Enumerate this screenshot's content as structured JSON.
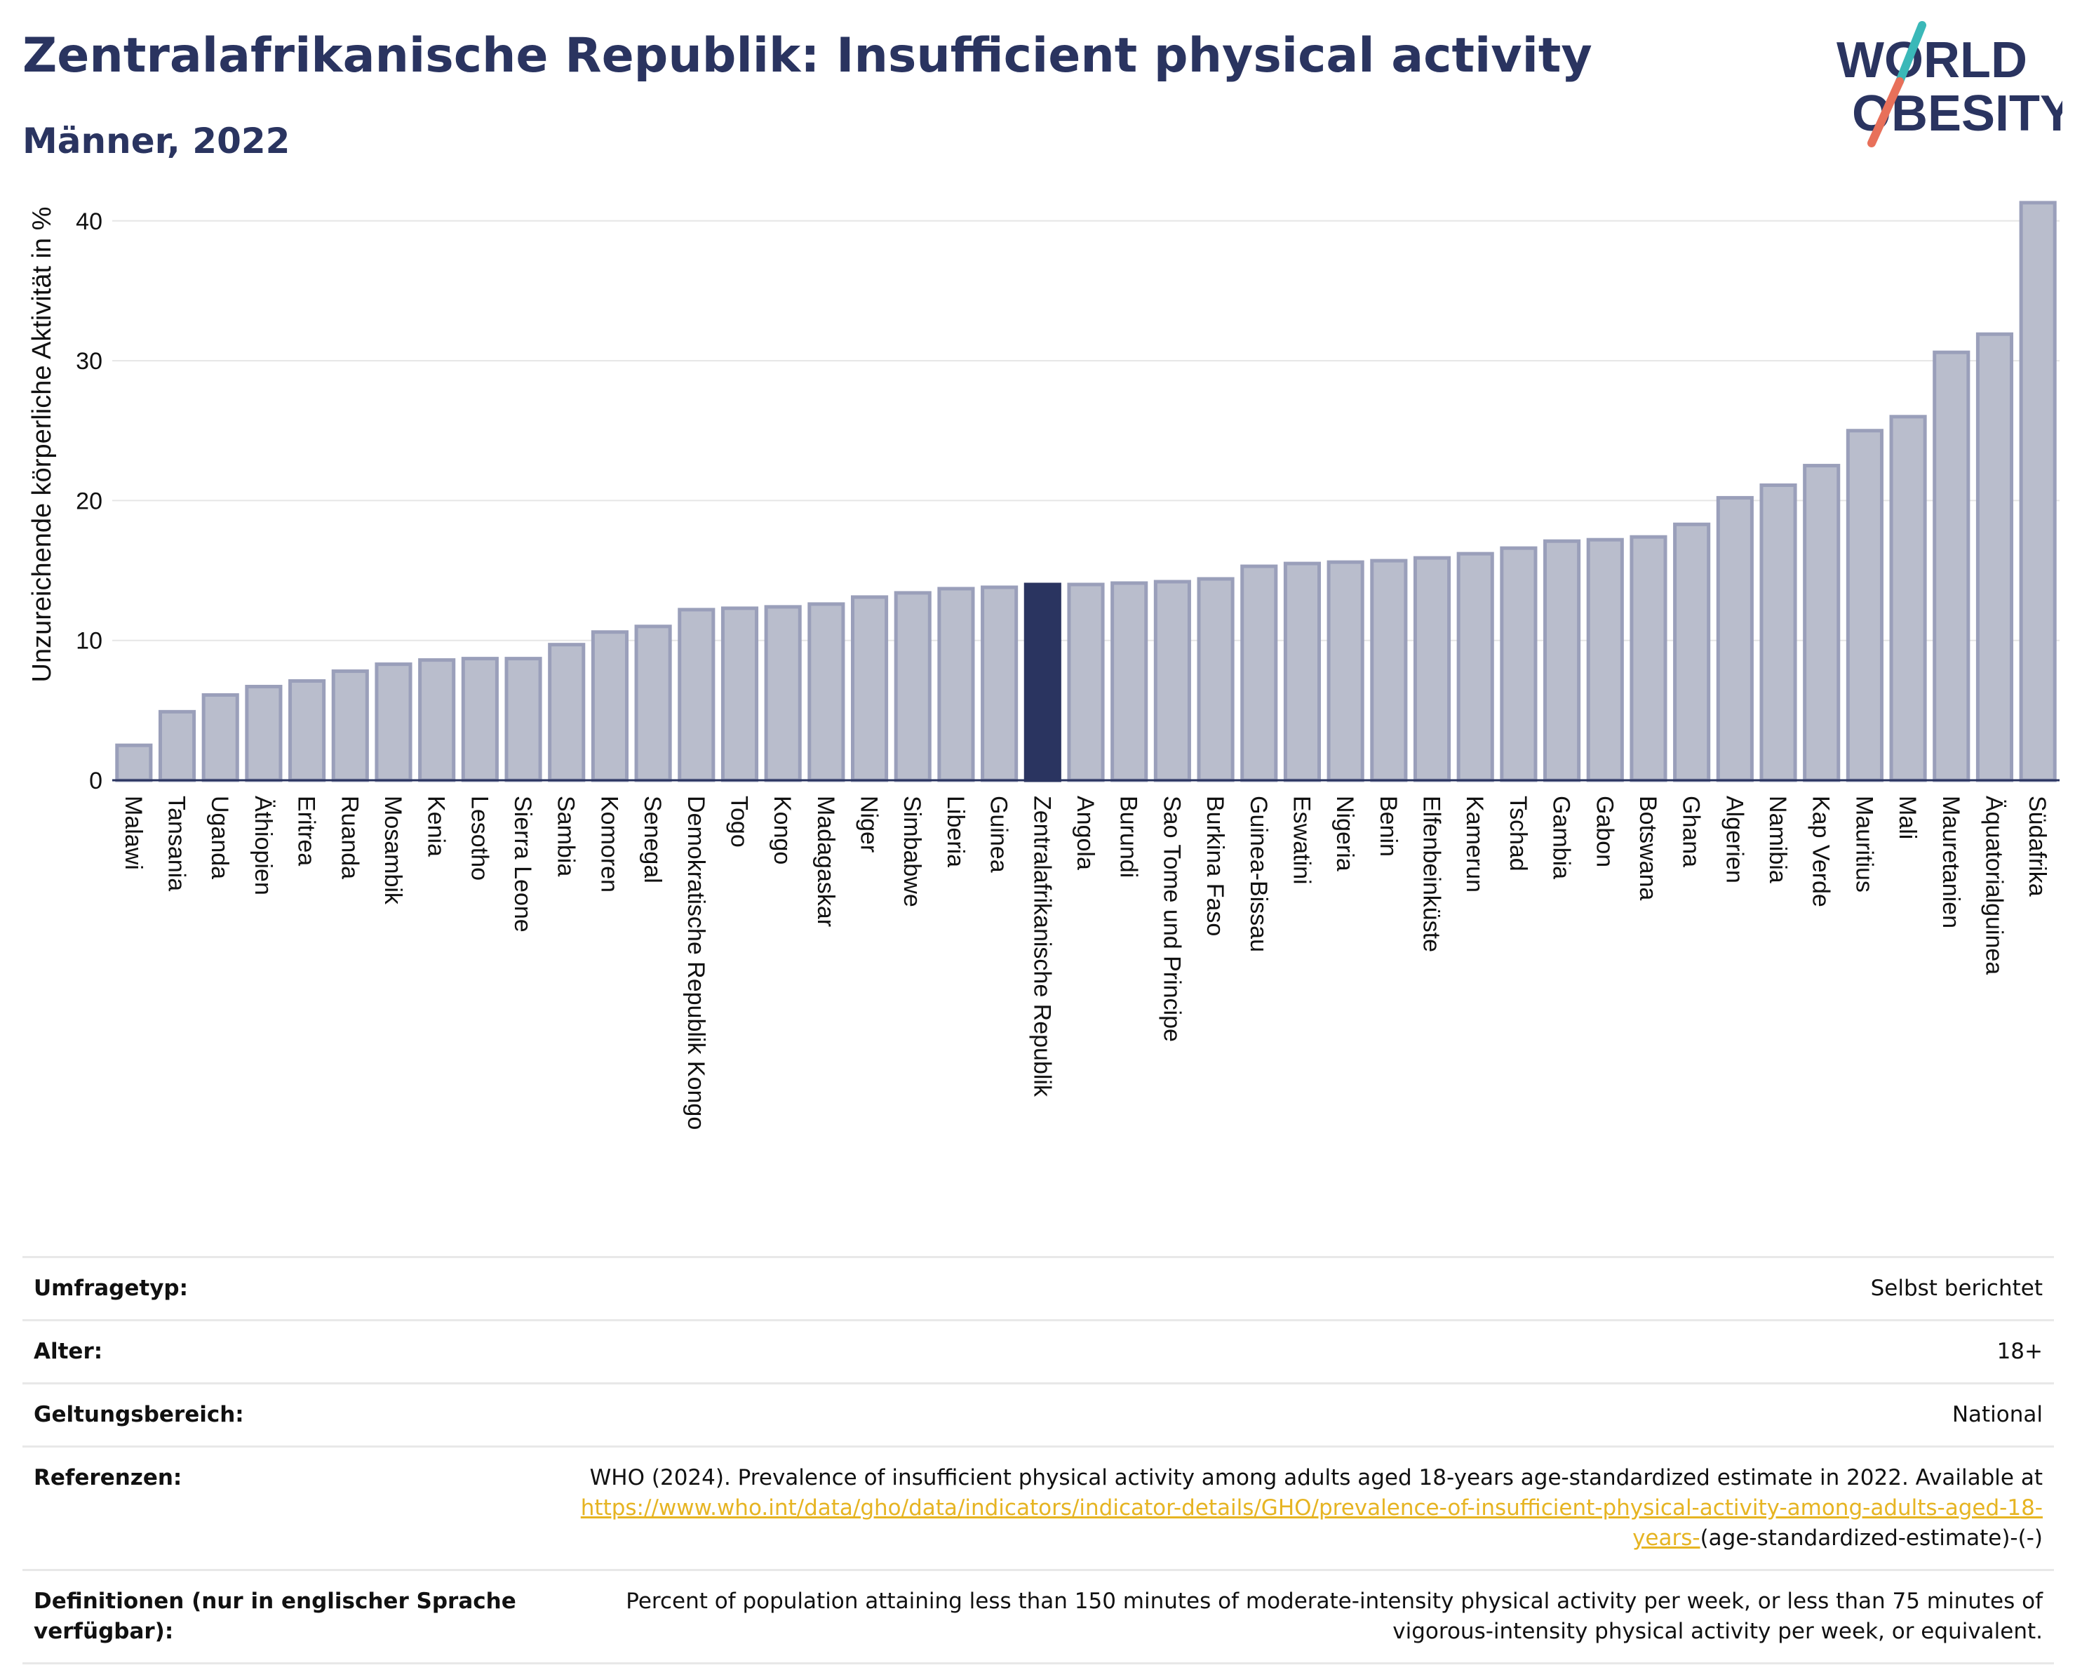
{
  "header": {
    "title": "Zentralafrikanische Republik: Insufficient physical activity",
    "subtitle": "Männer, 2022"
  },
  "logo": {
    "line1": "WORLD",
    "line2": "OBESITY",
    "accent_teal": "#3ab8b8",
    "accent_coral": "#e8705a",
    "text_color": "#2a3460"
  },
  "colors": {
    "bar": "#b9bdcc",
    "bar_stroke": "#9a9fba",
    "highlight": "#2a3460",
    "grid": "#e6e6e6",
    "axis": "#2a3460"
  },
  "chart_data": {
    "type": "bar",
    "title": "Zentralafrikanische Republik: Insufficient physical activity",
    "subtitle": "Männer, 2022",
    "xlabel": "",
    "ylabel": "Unzureichende körperliche Aktivität in %",
    "ylim": [
      0,
      43
    ],
    "yticks": [
      0,
      10,
      20,
      30,
      40
    ],
    "grid": true,
    "highlight": "Zentralafrikanische Republik",
    "categories": [
      "Malawi",
      "Tansania",
      "Uganda",
      "Äthiopien",
      "Eritrea",
      "Ruanda",
      "Mosambik",
      "Kenia",
      "Lesotho",
      "Sierra Leone",
      "Sambia",
      "Komoren",
      "Senegal",
      "Demokratische Republik Kongo",
      "Togo",
      "Kongo",
      "Madagaskar",
      "Niger",
      "Simbabwe",
      "Liberia",
      "Guinea",
      "Zentralafrikanische Republik",
      "Angola",
      "Burundi",
      "Sao Tome und Principe",
      "Burkina Faso",
      "Guinea-Bissau",
      "Eswatini",
      "Nigeria",
      "Benin",
      "Elfenbeinküste",
      "Kamerun",
      "Tschad",
      "Gambia",
      "Gabon",
      "Botswana",
      "Ghana",
      "Algerien",
      "Namibia",
      "Kap Verde",
      "Mauritius",
      "Mali",
      "Mauretanien",
      "Äquatorialguinea",
      "Südafrika"
    ],
    "values": [
      2.5,
      4.9,
      6.1,
      6.7,
      7.1,
      7.8,
      8.3,
      8.6,
      8.7,
      8.7,
      9.7,
      10.6,
      11.0,
      12.2,
      12.3,
      12.4,
      12.6,
      13.1,
      13.4,
      13.7,
      13.8,
      14.0,
      14.0,
      14.1,
      14.2,
      14.4,
      15.3,
      15.5,
      15.6,
      15.7,
      15.9,
      16.2,
      16.6,
      17.1,
      17.2,
      17.4,
      18.3,
      20.2,
      21.1,
      22.5,
      25.0,
      26.0,
      30.6,
      31.9,
      41.3
    ]
  },
  "meta": [
    {
      "label": "Umfragetyp:",
      "value": "Selbst berichtet"
    },
    {
      "label": "Alter:",
      "value": "18+"
    },
    {
      "label": "Geltungsbereich:",
      "value": "National"
    },
    {
      "label": "Referenzen:",
      "value": "WHO (2024). Prevalence of insufficient physical activity among adults aged 18-years age-standardized estimate in 2022. Available at",
      "link": "https://www.who.int/data/gho/data/indicators/indicator-details/GHO/prevalence-of-insufficient-physical-activity-among-adults-aged-18-years-",
      "value_after": "(age-standardized-estimate)-(-)"
    },
    {
      "label": "Definitionen (nur in englischer Sprache verfügbar):",
      "value": "Percent of population attaining less than 150 minutes of moderate-intensity physical activity per week, or less than 75 minutes of vigorous-intensity physical activity per week, or equivalent."
    }
  ]
}
